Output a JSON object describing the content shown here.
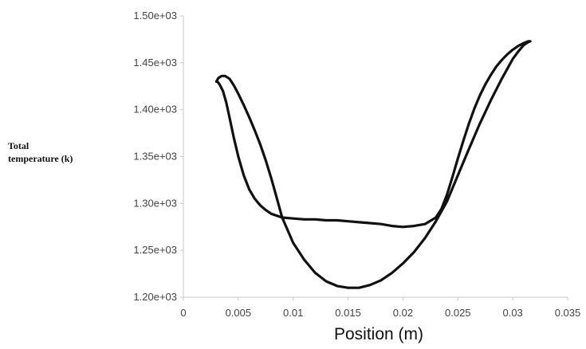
{
  "chart_data": {
    "type": "scatter",
    "title": "",
    "xlabel": "Position (m)",
    "ylabel_lines": [
      "Total",
      "temperature (k)"
    ],
    "xlim": [
      0,
      0.035
    ],
    "ylim": [
      1200,
      1500
    ],
    "x_ticks": [
      {
        "value": 0,
        "label": "0"
      },
      {
        "value": 0.005,
        "label": "0.005"
      },
      {
        "value": 0.01,
        "label": "0.01"
      },
      {
        "value": 0.015,
        "label": "0.015"
      },
      {
        "value": 0.02,
        "label": "0.02"
      },
      {
        "value": 0.025,
        "label": "0.025"
      },
      {
        "value": 0.03,
        "label": "0.03"
      },
      {
        "value": 0.035,
        "label": "0.035"
      }
    ],
    "y_ticks": [
      {
        "value": 1200,
        "label": "1.20e+03"
      },
      {
        "value": 1250,
        "label": "1.25e+03"
      },
      {
        "value": 1300,
        "label": "1.30e+03"
      },
      {
        "value": 1350,
        "label": "1.35e+03"
      },
      {
        "value": 1400,
        "label": "1.40e+03"
      },
      {
        "value": 1450,
        "label": "1.45e+03"
      },
      {
        "value": 1500,
        "label": "1.50e+03"
      }
    ],
    "grid": false,
    "series": [
      {
        "color": "#111111",
        "x": [
          0.003,
          0.0032,
          0.0035,
          0.0038,
          0.0042,
          0.0046,
          0.005,
          0.0055,
          0.006,
          0.0065,
          0.007,
          0.0075,
          0.008,
          0.0085,
          0.009,
          0.01,
          0.011,
          0.012,
          0.013,
          0.014,
          0.015,
          0.016,
          0.017,
          0.018,
          0.019,
          0.02,
          0.021,
          0.022,
          0.023,
          0.024,
          0.025,
          0.026,
          0.027,
          0.028,
          0.029,
          0.03,
          0.0305,
          0.031,
          0.0314,
          0.0316,
          0.0316,
          0.0314,
          0.031,
          0.0305,
          0.03,
          0.0295,
          0.029,
          0.0285,
          0.028,
          0.0275,
          0.027,
          0.0265,
          0.026,
          0.0255,
          0.025,
          0.0245,
          0.024,
          0.0235,
          0.023,
          0.022,
          0.021,
          0.02,
          0.019,
          0.018,
          0.017,
          0.016,
          0.015,
          0.014,
          0.013,
          0.012,
          0.011,
          0.01,
          0.009,
          0.008,
          0.0075,
          0.007,
          0.0065,
          0.006,
          0.0055,
          0.005,
          0.0046,
          0.0042,
          0.0039,
          0.0036,
          0.0033,
          0.0031,
          0.003
        ],
        "y": [
          1430,
          1434,
          1436,
          1436,
          1433,
          1426,
          1417,
          1405,
          1392,
          1378,
          1363,
          1346,
          1327,
          1306,
          1285,
          1258,
          1240,
          1226,
          1217,
          1212,
          1210,
          1210,
          1213,
          1218,
          1226,
          1236,
          1248,
          1263,
          1281,
          1302,
          1330,
          1358,
          1385,
          1410,
          1433,
          1454,
          1462,
          1469,
          1472,
          1473,
          1473,
          1473,
          1471,
          1468,
          1464,
          1459,
          1453,
          1446,
          1437,
          1427,
          1415,
          1401,
          1385,
          1367,
          1348,
          1328,
          1309,
          1294,
          1285,
          1278,
          1276,
          1275,
          1276,
          1278,
          1279,
          1280,
          1281,
          1282,
          1282,
          1283,
          1283,
          1284,
          1285,
          1289,
          1293,
          1298,
          1305,
          1315,
          1330,
          1350,
          1370,
          1392,
          1408,
          1420,
          1427,
          1430,
          1430
        ]
      }
    ]
  }
}
